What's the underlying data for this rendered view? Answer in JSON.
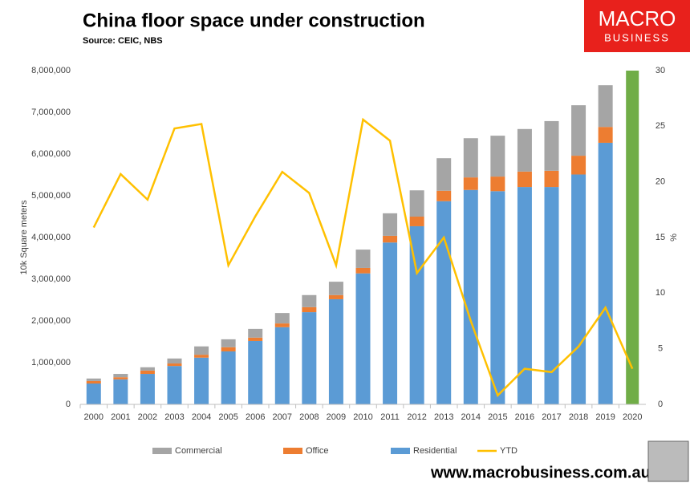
{
  "chart_data": {
    "type": "bar_line",
    "title": "China floor space under construction",
    "subtitle": "Source: CEIC, NBS",
    "y_label": "10k Square meters",
    "y2_label": "%",
    "categories": [
      "2000",
      "2001",
      "2002",
      "2003",
      "2004",
      "2005",
      "2006",
      "2007",
      "2008",
      "2009",
      "2010",
      "2011",
      "2012",
      "2013",
      "2014",
      "2015",
      "2016",
      "2017",
      "2018",
      "2019",
      "2020"
    ],
    "series": [
      {
        "name": "Commercial",
        "color": "#a5a5a5",
        "kind": "bar",
        "values": [
          60000,
          80000,
          80000,
          120000,
          200000,
          190000,
          210000,
          250000,
          290000,
          320000,
          440000,
          540000,
          630000,
          780000,
          940000,
          980000,
          1020000,
          1190000,
          1210000,
          1000000,
          null
        ]
      },
      {
        "name": "Office",
        "color": "#ed7d31",
        "kind": "bar",
        "values": [
          60000,
          50000,
          80000,
          60000,
          70000,
          100000,
          80000,
          90000,
          120000,
          100000,
          130000,
          160000,
          230000,
          250000,
          300000,
          350000,
          370000,
          390000,
          450000,
          380000,
          null
        ]
      },
      {
        "name": "Residential",
        "color": "#5b9bd5",
        "kind": "bar",
        "values": [
          500000,
          600000,
          730000,
          920000,
          1120000,
          1270000,
          1520000,
          1850000,
          2210000,
          2520000,
          3140000,
          3880000,
          4270000,
          4870000,
          5140000,
          5110000,
          5210000,
          5210000,
          5510000,
          6270000,
          null
        ]
      },
      {
        "name": "YTD",
        "color": "#ffc000",
        "kind": "line",
        "axis": "y2",
        "values": [
          15.9,
          20.7,
          18.4,
          24.8,
          25.2,
          12.5,
          16.9,
          20.9,
          19.0,
          12.5,
          25.6,
          23.7,
          11.8,
          15.0,
          7.5,
          0.8,
          3.2,
          2.9,
          5.2,
          8.7,
          3.2
        ]
      }
    ],
    "highlight_category": "2020",
    "highlight_color": "#70ad47",
    "ylim": [
      0,
      8000000
    ],
    "yticks": [
      0,
      {
        "value": 1000000,
        "label": "1,000,000"
      },
      {
        "value": 2000000,
        "label": "2,000,000"
      },
      {
        "value": 3000000,
        "label": "3,000,000"
      },
      {
        "value": 4000000,
        "label": "4,000,000"
      },
      {
        "value": 5000000,
        "label": "5,000,000"
      },
      {
        "value": 6000000,
        "label": "6,000,000"
      },
      {
        "value": 7000000,
        "label": "7,000,000"
      },
      {
        "value": 8000000,
        "label": "8,000,000"
      }
    ],
    "y2lim": [
      0,
      30
    ],
    "y2ticks": [
      0,
      5,
      10,
      15,
      20,
      25,
      30
    ],
    "grid": false,
    "legend": "bottom"
  },
  "logo": {
    "line1": "MACRO",
    "line2": "BUSINESS"
  },
  "footer": "www.macrobusiness.com.au"
}
